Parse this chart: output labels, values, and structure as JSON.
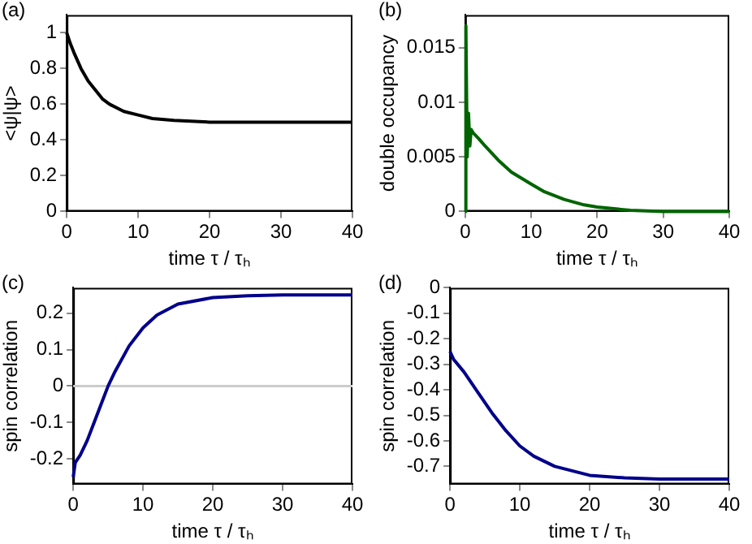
{
  "chart_data": [
    {
      "type": "line",
      "title": "(a)",
      "xlabel": "time τ / τₕ",
      "ylabel": "<ψ|ψ>",
      "x": [
        0,
        0.5,
        1,
        2,
        3,
        4,
        5,
        6,
        8,
        10,
        12,
        15,
        20,
        25,
        30,
        35,
        40
      ],
      "series": [
        {
          "color": "#000000",
          "values": [
            1,
            0.94,
            0.89,
            0.8,
            0.73,
            0.68,
            0.63,
            0.6,
            0.56,
            0.54,
            0.52,
            0.51,
            0.5,
            0.5,
            0.5,
            0.5,
            0.5
          ]
        }
      ],
      "xlim": [
        0,
        40
      ],
      "xticks": [
        0,
        10,
        20,
        30,
        40
      ],
      "ylim": [
        0,
        1.1
      ],
      "yticks": [
        0,
        0.2,
        0.4,
        0.6,
        0.8,
        1
      ],
      "marker": "none"
    },
    {
      "type": "line",
      "title": "(b)",
      "xlabel": "time τ / τₕ",
      "ylabel": "double occupancy",
      "x": [
        0,
        0.1,
        0.3,
        0.5,
        0.7,
        0.9,
        1.2,
        2,
        3,
        5,
        7,
        10,
        12,
        15,
        18,
        20,
        25,
        30,
        35,
        40
      ],
      "series": [
        {
          "color": "#006400",
          "values": [
            0,
            0.017,
            0.005,
            0.009,
            0.006,
            0.0075,
            0.0072,
            0.0067,
            0.006,
            0.0047,
            0.0036,
            0.0025,
            0.0018,
            0.0011,
            0.0006,
            0.0004,
            0.0001,
            0,
            0,
            0
          ]
        }
      ],
      "xlim": [
        0,
        40
      ],
      "xticks": [
        0,
        10,
        20,
        30,
        40
      ],
      "ylim": [
        0,
        0.018
      ],
      "yticks": [
        0,
        0.005,
        0.01,
        0.015
      ],
      "marker": "none"
    },
    {
      "type": "line",
      "title": "(c)",
      "xlabel": "time τ / τₕ",
      "ylabel": "spin correlation",
      "x": [
        0,
        0.3,
        1,
        2,
        3,
        4,
        5,
        6,
        8,
        10,
        12,
        15,
        20,
        25,
        30,
        35,
        40
      ],
      "series": [
        {
          "color": "#00008b",
          "values": [
            -0.25,
            -0.21,
            -0.19,
            -0.15,
            -0.1,
            -0.05,
            0,
            0.04,
            0.11,
            0.16,
            0.195,
            0.225,
            0.243,
            0.248,
            0.25,
            0.25,
            0.25
          ]
        }
      ],
      "xlim": [
        0,
        40
      ],
      "xticks": [
        0,
        10,
        20,
        30,
        40
      ],
      "ylim": [
        -0.27,
        0.27
      ],
      "yticks": [
        -0.2,
        -0.1,
        0,
        0.1,
        0.2
      ],
      "marker": "none",
      "ref_lines": [
        {
          "axis": "y",
          "value": 0,
          "color": "#cccccc"
        }
      ]
    },
    {
      "type": "line",
      "title": "(d)",
      "xlabel": "time τ / τₕ",
      "ylabel": "spin correlation",
      "x": [
        0,
        0.5,
        2,
        4,
        6,
        8,
        10,
        12,
        15,
        20,
        25,
        30,
        35,
        40
      ],
      "series": [
        {
          "color": "#00008b",
          "values": [
            -0.25,
            -0.28,
            -0.33,
            -0.41,
            -0.49,
            -0.56,
            -0.62,
            -0.66,
            -0.7,
            -0.735,
            -0.745,
            -0.75,
            -0.75,
            -0.75
          ]
        }
      ],
      "xlim": [
        0,
        40
      ],
      "xticks": [
        0,
        10,
        20,
        30,
        40
      ],
      "ylim": [
        -0.77,
        0
      ],
      "yticks": [
        -0.7,
        -0.6,
        -0.5,
        -0.4,
        -0.3,
        -0.2,
        -0.1,
        0
      ],
      "marker": "none"
    }
  ]
}
